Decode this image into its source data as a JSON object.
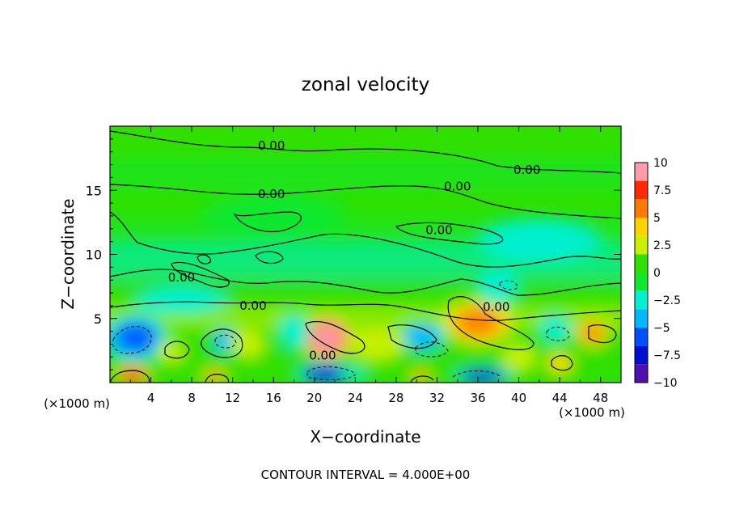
{
  "chart_data": {
    "type": "heatmap",
    "title": "zonal velocity",
    "xlabel": "X−coordinate",
    "ylabel": "Z−coordinate",
    "x_unit_left": "(×1000 m)",
    "x_unit_right": "(×1000 m)",
    "footer": "CONTOUR INTERVAL = 4.000E+00",
    "xlim": [
      0,
      50
    ],
    "ylim": [
      0,
      20
    ],
    "x_ticks": [
      4,
      8,
      12,
      16,
      20,
      24,
      28,
      32,
      36,
      40,
      44,
      48
    ],
    "y_ticks": [
      5,
      10,
      15
    ],
    "x_tick_labels": [
      "4",
      "8",
      "12",
      "16",
      "20",
      "24",
      "28",
      "32",
      "36",
      "40",
      "44",
      "48"
    ],
    "y_tick_labels": [
      "5",
      "10",
      "15"
    ],
    "colorbar": {
      "levels": [
        -10,
        -7.5,
        -5,
        -2.5,
        0,
        2.5,
        5,
        7.5,
        10
      ],
      "labels": [
        "10",
        "7.5",
        "5",
        "2.5",
        "0",
        "−2.5",
        "−5",
        "−7.5",
        "−10"
      ],
      "colors": [
        "#ff9aa8",
        "#ff2a00",
        "#ff7a00",
        "#ffd200",
        "#c8f000",
        "#30e000",
        "#10e830",
        "#00f0d0",
        "#00b8ff",
        "#0050ff",
        "#0010d0",
        "#5010b0"
      ]
    },
    "contour_labels": [
      {
        "x": 15.8,
        "z": 18.5,
        "text": "0.00"
      },
      {
        "x": 40.8,
        "z": 16.6,
        "text": "0.00"
      },
      {
        "x": 15.8,
        "z": 14.7,
        "text": "0.00"
      },
      {
        "x": 34.0,
        "z": 15.3,
        "text": "0.00"
      },
      {
        "x": 32.2,
        "z": 11.9,
        "text": "0.00"
      },
      {
        "x": 7.0,
        "z": 8.2,
        "text": "0.00"
      },
      {
        "x": 14.0,
        "z": 6.0,
        "text": "0.00"
      },
      {
        "x": 37.8,
        "z": 5.9,
        "text": "0.00"
      },
      {
        "x": 20.8,
        "z": 2.1,
        "text": "0.00"
      }
    ],
    "anomalies": [
      {
        "x": 2.5,
        "z": 3.5,
        "value": -6,
        "rx": 2.8,
        "rz": 1.6
      },
      {
        "x": 21.2,
        "z": 3.5,
        "value": 9,
        "rx": 2.2,
        "rz": 1.5
      },
      {
        "x": 36.0,
        "z": 4.7,
        "value": 5.5,
        "rx": 3.2,
        "rz": 1.6
      },
      {
        "x": 47.2,
        "z": 3.9,
        "value": 5.5,
        "rx": 1.6,
        "rz": 1.0
      },
      {
        "x": 44.0,
        "z": 1.5,
        "value": 5,
        "rx": 1.2,
        "rz": 0.8
      },
      {
        "x": 2.2,
        "z": 0.6,
        "value": 7,
        "rx": 1.6,
        "rz": 0.7
      },
      {
        "x": 10.2,
        "z": 0.5,
        "value": 6,
        "rx": 1.1,
        "rz": 0.6
      },
      {
        "x": 30.4,
        "z": 0.5,
        "value": 6,
        "rx": 1.0,
        "rz": 0.5
      },
      {
        "x": 21.0,
        "z": 0.7,
        "value": -7,
        "rx": 2.3,
        "rz": 0.8
      },
      {
        "x": 36.5,
        "z": 0.5,
        "value": -8,
        "rx": 2.5,
        "rz": 0.6
      },
      {
        "x": 11.2,
        "z": 3.3,
        "value": -4,
        "rx": 1.2,
        "rz": 0.9
      },
      {
        "x": 18.0,
        "z": 4.0,
        "value": -3,
        "rx": 1.4,
        "rz": 1.2
      },
      {
        "x": 30.5,
        "z": 3.6,
        "value": -4,
        "rx": 2.0,
        "rz": 1.0
      },
      {
        "x": 43.5,
        "z": 4.2,
        "value": -3,
        "rx": 1.5,
        "rz": 1.0
      },
      {
        "x": 7.0,
        "z": 6.4,
        "value": -2.5,
        "rx": 4.0,
        "rz": 1.0
      },
      {
        "x": 26.0,
        "z": 3.0,
        "value": 2.5,
        "rx": 2.5,
        "rz": 1.2
      },
      {
        "x": 13.5,
        "z": 3.0,
        "value": 3,
        "rx": 1.5,
        "rz": 1.0
      },
      {
        "x": 6.0,
        "z": 2.4,
        "value": 3,
        "rx": 1.2,
        "rz": 0.8
      },
      {
        "x": 24.0,
        "z": 0.6,
        "value": -3,
        "rx": 1.0,
        "rz": 0.5
      },
      {
        "x": 40.0,
        "z": 2.0,
        "value": 2,
        "rx": 1.5,
        "rz": 1.0
      },
      {
        "x": 38.0,
        "z": 7.5,
        "value": -2.5,
        "rx": 1.8,
        "rz": 1.2
      },
      {
        "x": 16.0,
        "z": 13.0,
        "value": -1.5,
        "rx": 6.0,
        "rz": 1.5
      },
      {
        "x": 42.0,
        "z": 11.0,
        "value": -2,
        "rx": 5.0,
        "rz": 1.5
      }
    ]
  }
}
